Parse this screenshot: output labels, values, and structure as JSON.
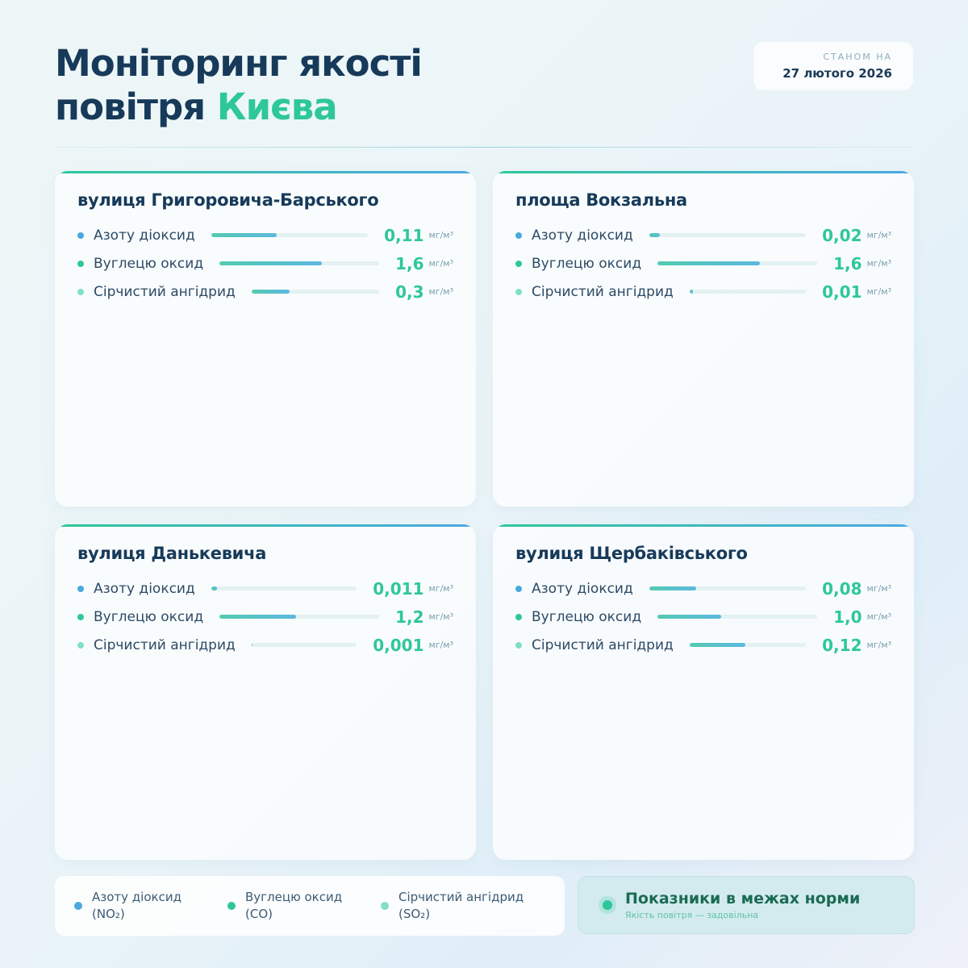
{
  "header": {
    "title_line1": "Моніторинг якості",
    "title_line2_prefix": "повітря",
    "title_accent": "Києва",
    "date_label": "СТАНОМ НА",
    "date_value": "27 лютого 2026"
  },
  "colors": {
    "no2": "#4aa8e0",
    "co": "#2ec79a",
    "so2": "#7fe0c4",
    "accent": "#2ec79a"
  },
  "unit": "мг/м³",
  "stations": [
    {
      "name": "вулиця Григоровича-Барського",
      "readings": [
        {
          "label": "Азоту діоксид",
          "value": "0,11",
          "level": 0.42
        },
        {
          "label": "Вуглецю оксид",
          "value": "1,6",
          "level": 0.64
        },
        {
          "label": "Сірчистий ангідрид",
          "value": "0,3",
          "level": 0.3
        }
      ]
    },
    {
      "name": "площа Вокзальна",
      "readings": [
        {
          "label": "Азоту діоксид",
          "value": "0,02",
          "level": 0.07
        },
        {
          "label": "Вуглецю оксид",
          "value": "1,6",
          "level": 0.64
        },
        {
          "label": "Сірчистий ангідрид",
          "value": "0,01",
          "level": 0.03
        }
      ]
    },
    {
      "name": "вулиця Данькевича",
      "readings": [
        {
          "label": "Азоту діоксид",
          "value": "0,011",
          "level": 0.04
        },
        {
          "label": "Вуглецю оксид",
          "value": "1,2",
          "level": 0.48
        },
        {
          "label": "Сірчистий ангідрид",
          "value": "0,001",
          "level": 0.01
        }
      ]
    },
    {
      "name": "вулиця Щербаківського",
      "readings": [
        {
          "label": "Азоту діоксид",
          "value": "0,08",
          "level": 0.3
        },
        {
          "label": "Вуглецю оксид",
          "value": "1,0",
          "level": 0.4
        },
        {
          "label": "Сірчистий ангідрид",
          "value": "0,12",
          "level": 0.48
        }
      ]
    }
  ],
  "legend": [
    {
      "label": "Азоту діоксид",
      "formula": "(NO₂)"
    },
    {
      "label": "Вуглецю оксид",
      "formula": "(CO)"
    },
    {
      "label": "Сірчистий ангідрид",
      "formula": "(SO₂)"
    }
  ],
  "status": {
    "title": "Показники в межах норми",
    "subtitle": "Якість повітря — задовільна"
  }
}
